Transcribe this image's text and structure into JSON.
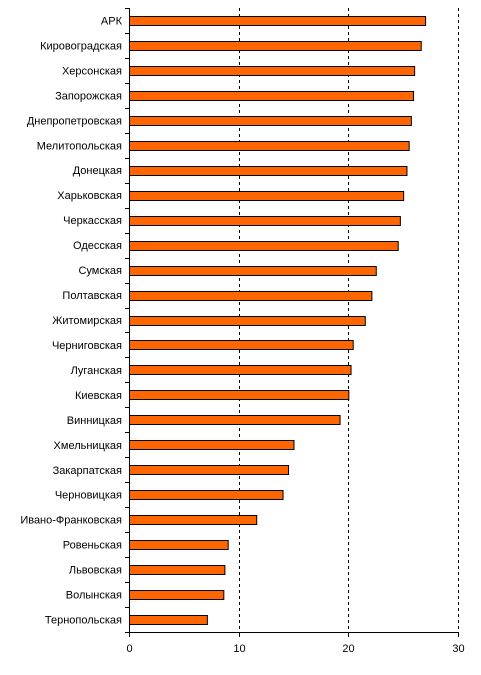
{
  "chart_data": {
    "type": "bar",
    "orientation": "horizontal",
    "title": "",
    "xlabel": "",
    "ylabel": "",
    "xlim": [
      0,
      30
    ],
    "x_ticks": [
      0,
      10,
      20,
      30
    ],
    "x_tick_labels": [
      "0",
      "10",
      "20",
      "30"
    ],
    "grid": "vertical dashed lines at 10, 20, 30",
    "legend": "none",
    "bar_color": "#ff6600",
    "bar_edge_color": "#000000",
    "categories": [
      "АРК",
      "Кировоградская",
      "Херсонская",
      "Запорожская",
      "Днепропетровская",
      "Мелитопольская",
      "Донецкая",
      "Харьковская",
      "Черкасская",
      "Одесская",
      "Сумская",
      "Полтавская",
      "Житомирская",
      "Черниговская",
      "Луганская",
      "Киевская",
      "Винницкая",
      "Хмельницкая",
      "Закарпатская",
      "Черновицкая",
      "Ивано-Франковская",
      "Ровеньская",
      "Львовская",
      "Волынская",
      "Тернопольская"
    ],
    "values": [
      27.0,
      26.6,
      26.0,
      25.9,
      25.7,
      25.5,
      25.3,
      25.0,
      24.7,
      24.5,
      22.5,
      22.1,
      21.5,
      20.4,
      20.2,
      20.0,
      19.2,
      15.0,
      14.5,
      14.0,
      11.6,
      9.0,
      8.7,
      8.6,
      7.1
    ]
  }
}
